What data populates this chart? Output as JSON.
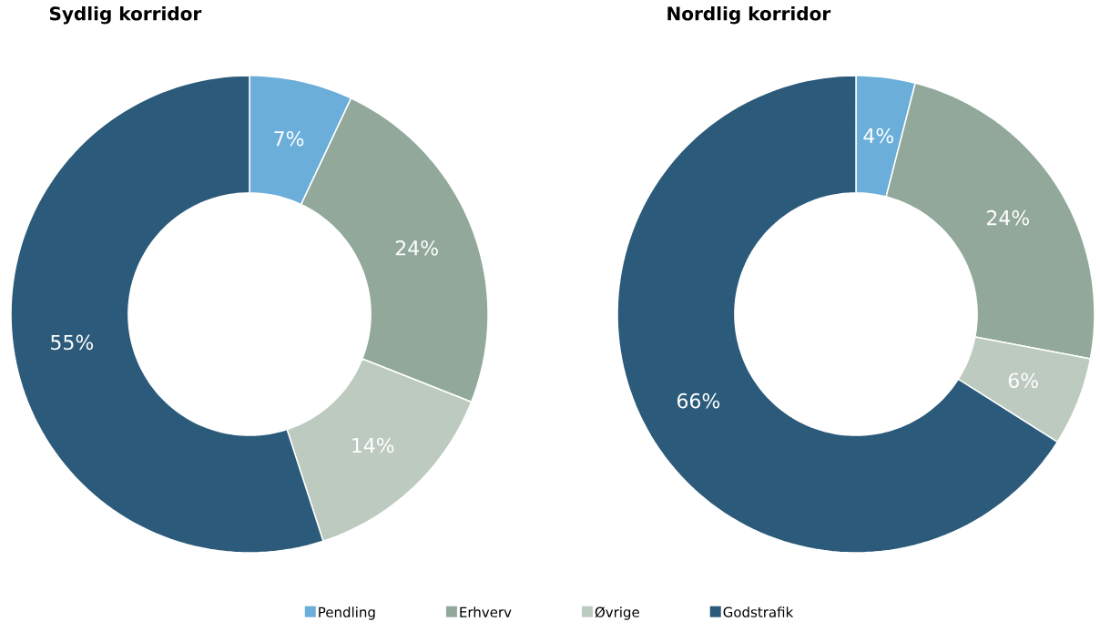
{
  "chart_data": [
    {
      "type": "donut",
      "title": "Sydlig korridor",
      "categories": [
        null,
        null,
        null,
        null
      ],
      "values": [
        7,
        24,
        14,
        55
      ],
      "colors": [
        "#6aaed9",
        "#91a89a",
        "#bccabf",
        "#2b5a7a"
      ],
      "value_labels": [
        "7%",
        "24%",
        "14%",
        "55%"
      ]
    },
    {
      "type": "donut",
      "title": "Nordlig korridor",
      "categories": [
        "Pendling",
        "Erhverv",
        "Øvrige",
        "Godstrafik"
      ],
      "values": [
        4,
        24,
        6,
        66
      ],
      "colors": [
        "#6aaed9",
        "#91a89a",
        "#bccabf",
        "#2b5a7a"
      ],
      "value_labels": [
        "4%",
        "24%",
        "6%",
        "66%"
      ],
      "legend": "bottom"
    }
  ]
}
